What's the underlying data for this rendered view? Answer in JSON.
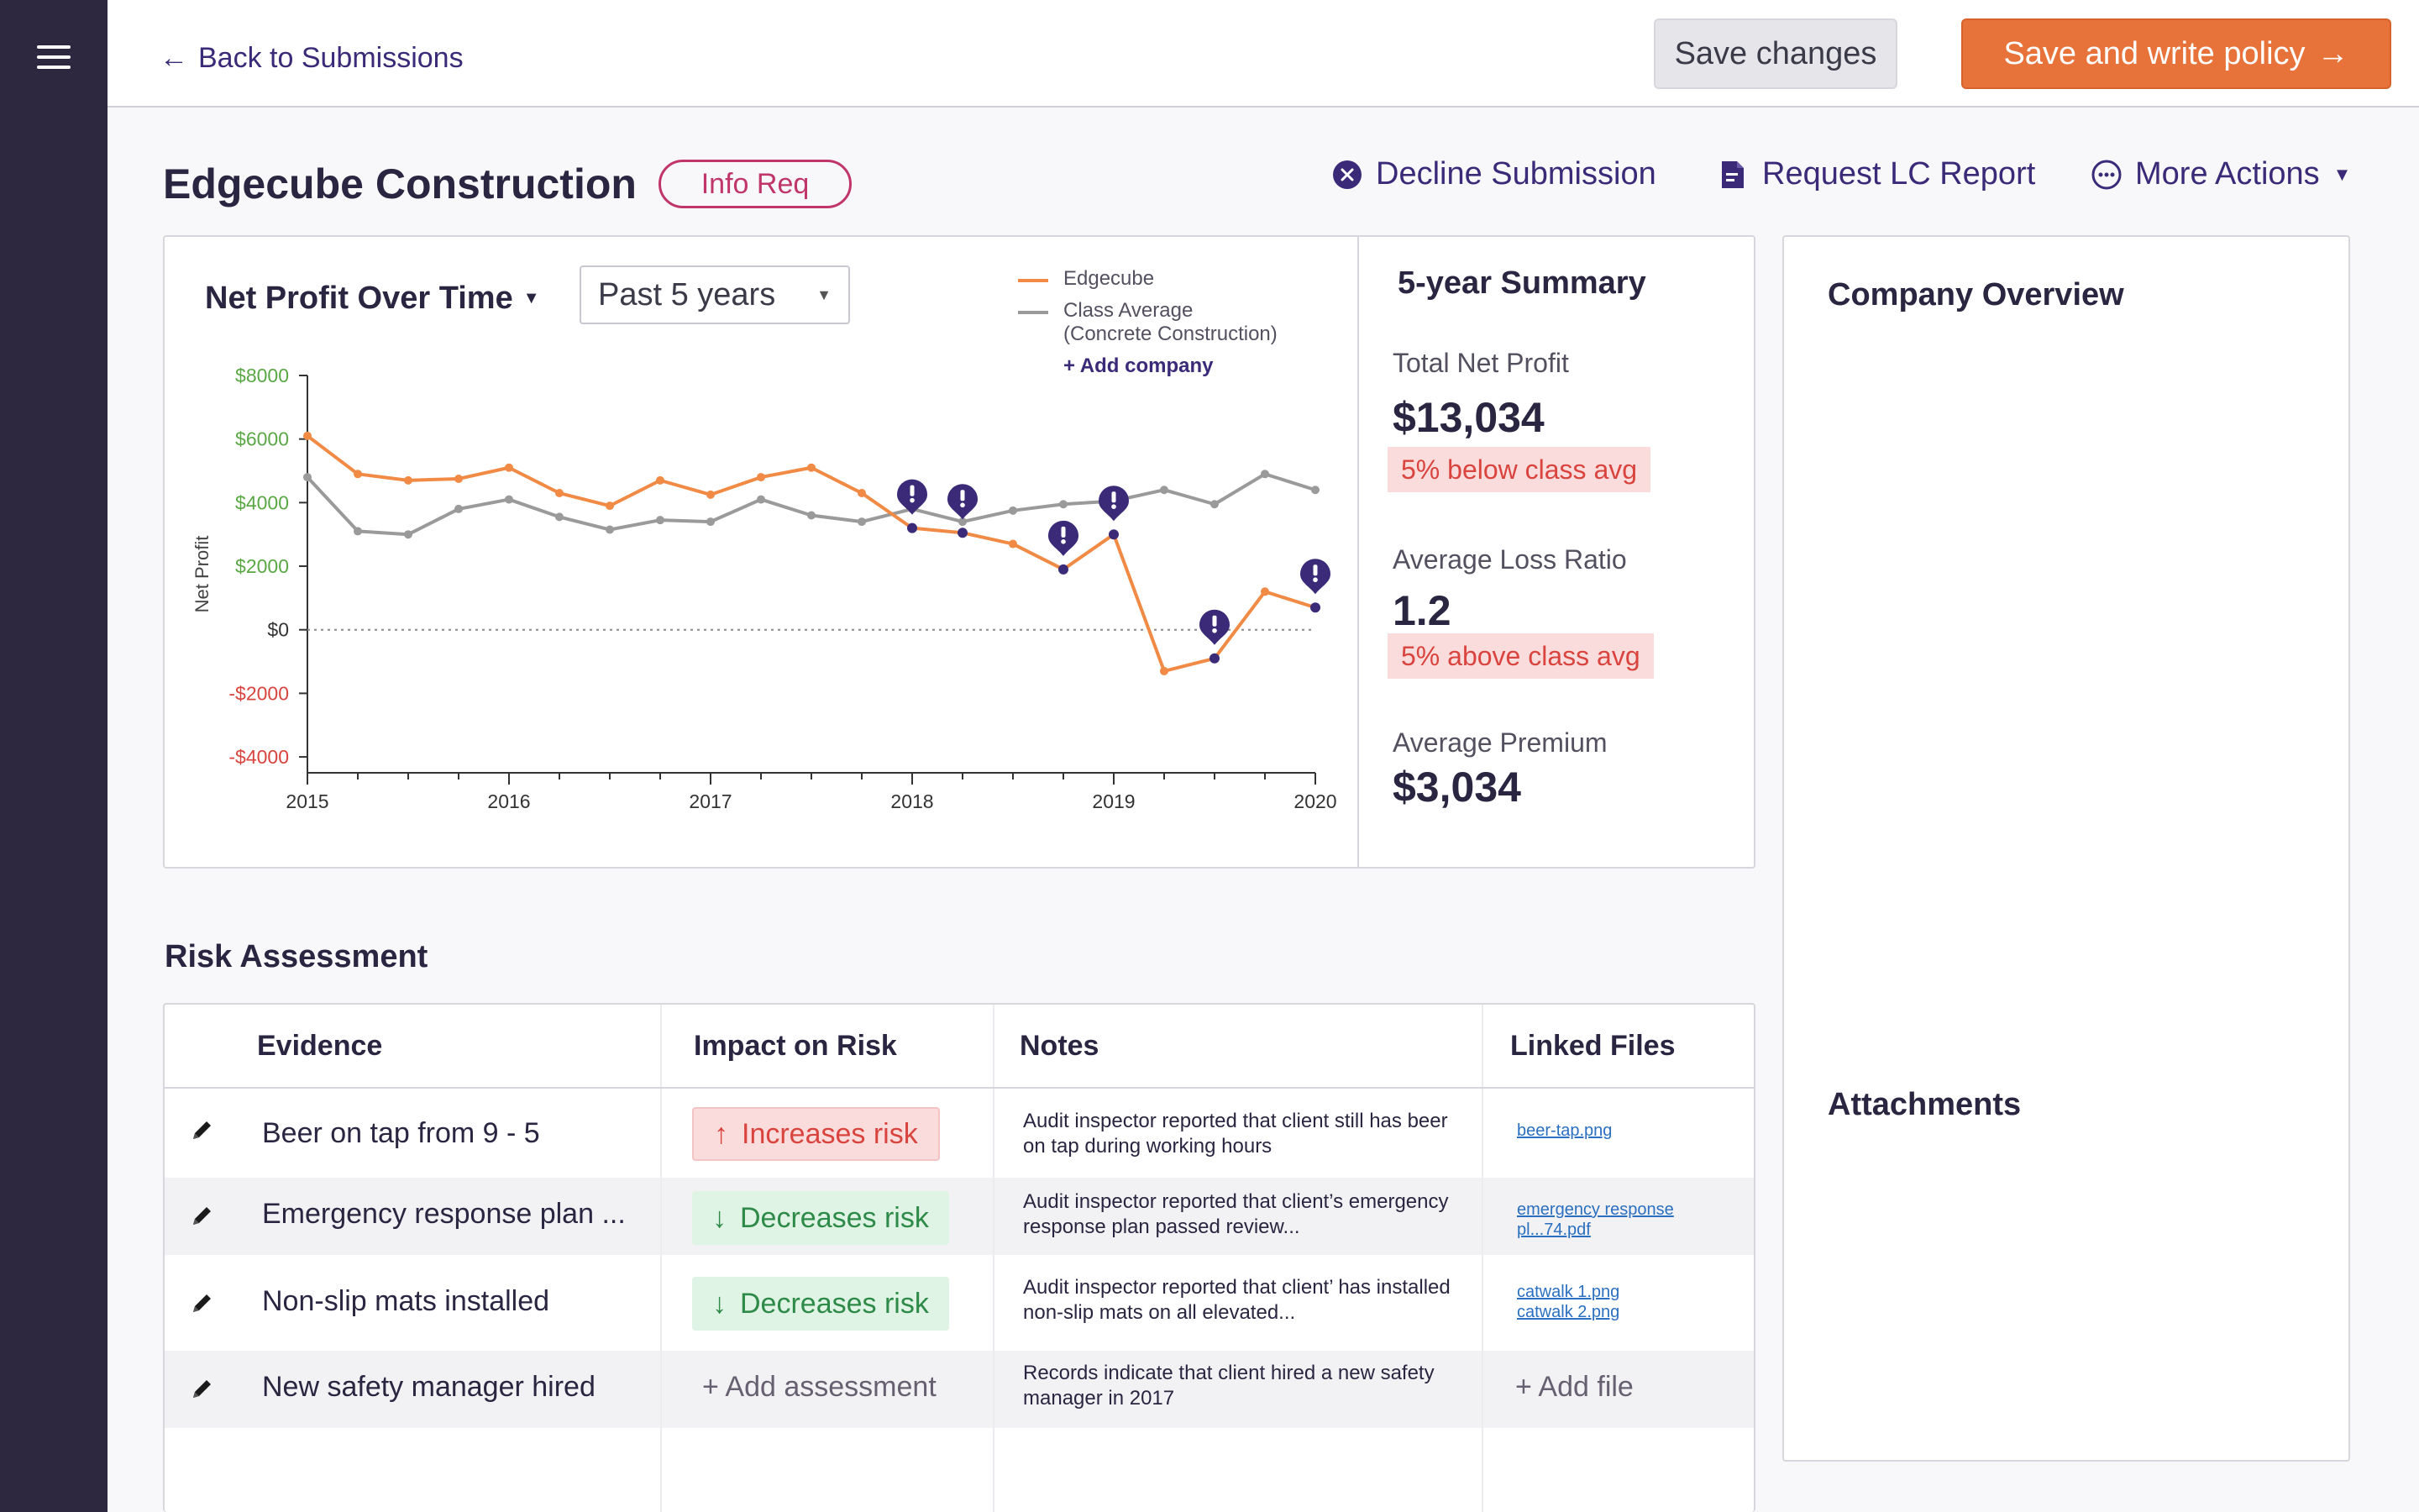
{
  "nav": {
    "back_label": "Back to Submissions"
  },
  "toolbar": {
    "save_label": "Save changes",
    "write_policy_label": "Save and write policy"
  },
  "header": {
    "company": "Edgecube Construction",
    "status": "Info Req",
    "actions": {
      "decline": "Decline Submission",
      "request": "Request LC Report",
      "more": "More Actions"
    }
  },
  "chart_panel": {
    "title": "Net Profit Over Time",
    "period": "Past 5 years",
    "legend": {
      "company": "Edgecube",
      "avg_line1": "Class Average",
      "avg_line2": "(Concrete Construction)",
      "add": "+ Add company"
    }
  },
  "chart_data": {
    "type": "line",
    "ylabel": "Net Profit",
    "ylim": [
      -4500,
      8000
    ],
    "yticks": [
      {
        "value": 8000,
        "label": "$8000"
      },
      {
        "value": 6000,
        "label": "$6000"
      },
      {
        "value": 4000,
        "label": "$4000"
      },
      {
        "value": 2000,
        "label": "$2000"
      },
      {
        "value": 0,
        "label": "$0"
      },
      {
        "value": -2000,
        "label": "-$2000"
      },
      {
        "value": -4000,
        "label": "-$4000"
      }
    ],
    "x_tick_labels": [
      "2015",
      "2016",
      "2017",
      "2018",
      "2019",
      "2020"
    ],
    "x": [
      2015,
      2015.25,
      2015.5,
      2015.75,
      2016,
      2016.25,
      2016.5,
      2016.75,
      2017,
      2017.25,
      2017.5,
      2017.75,
      2018,
      2018.25,
      2018.5,
      2018.75,
      2019,
      2019.25,
      2019.5,
      2019.75,
      2020
    ],
    "series": [
      {
        "name": "Edgecube",
        "color": "#f08a45",
        "values": [
          6100,
          4900,
          4700,
          4750,
          5100,
          4300,
          3900,
          4700,
          4250,
          4800,
          5100,
          4300,
          3200,
          3050,
          2700,
          1900,
          3000,
          -1300,
          -900,
          1200,
          700
        ]
      },
      {
        "name": "Class Average",
        "color": "#9a9a9a",
        "values": [
          4800,
          3100,
          3000,
          3800,
          4100,
          3550,
          3150,
          3450,
          3400,
          4100,
          3600,
          3400,
          3800,
          3400,
          3750,
          3950,
          4050,
          4400,
          3950,
          4900,
          4400
        ]
      }
    ],
    "alert_points": [
      12,
      13,
      15,
      16,
      18,
      20
    ],
    "grid": false,
    "zero_line": "dotted",
    "legend_position": "top-right"
  },
  "summary": {
    "title": "5-year Summary",
    "items": [
      {
        "label": "Total Net Profit",
        "value": "$13,034",
        "badge": "5% below class avg"
      },
      {
        "label": "Average Loss Ratio",
        "value": "1.2",
        "badge": "5% above class avg"
      },
      {
        "label": "Average Premium",
        "value": "$3,034"
      }
    ]
  },
  "sidebar": {
    "overview": "Company Overview",
    "attachments": "Attachments"
  },
  "risk": {
    "title": "Risk Assessment",
    "columns": [
      "Evidence",
      "Impact on Risk",
      "Notes",
      "Linked Files"
    ],
    "rows": [
      {
        "evidence": "Beer on tap from 9 - 5",
        "impact": "Increases risk",
        "note": "Audit inspector reported that client still has beer on tap during working hours",
        "files": [
          "beer-tap.png"
        ]
      },
      {
        "evidence": "Emergency response plan ...",
        "impact": "Decreases risk",
        "note": "Audit inspector reported that client’s emergency response plan passed review...",
        "files": [
          "emergency response pl...74.pdf"
        ]
      },
      {
        "evidence": "Non-slip mats installed",
        "impact": "Decreases risk",
        "note": "Audit inspector reported that client’ has installed non-slip mats on all elevated...",
        "files": [
          "catwalk 1.png",
          "catwalk 2.png"
        ]
      },
      {
        "evidence": "New safety manager hired",
        "impact": "+ Add assessment",
        "note": "Records indicate that client hired a new safety manager in 2017",
        "files": [
          "+ Add file"
        ]
      }
    ]
  }
}
